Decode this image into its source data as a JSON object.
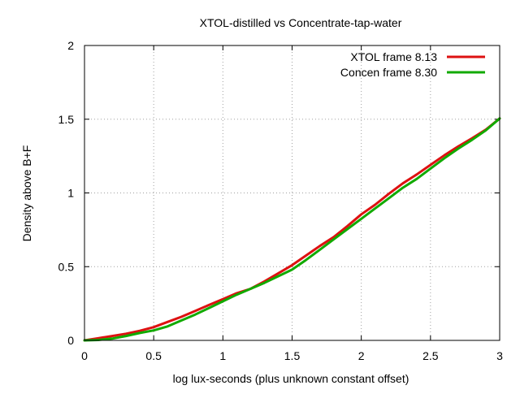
{
  "chart_data": {
    "type": "line",
    "title": "XTOL-distilled vs Concentrate-tap-water",
    "xlabel": "log lux-seconds (plus unknown constant offset)",
    "ylabel": "Density above B+F",
    "xlim": [
      0,
      3
    ],
    "ylim": [
      0,
      2
    ],
    "xticks": [
      "0",
      "0.5",
      "1",
      "1.5",
      "2",
      "2.5",
      "3"
    ],
    "yticks": [
      "0",
      "0.5",
      "1",
      "1.5",
      "2"
    ],
    "grid": true,
    "grid_style": "dotted",
    "legend_position": "top-right",
    "series": [
      {
        "name": "XTOL frame 8.13",
        "color": "#dd1111",
        "x": [
          0,
          0.1,
          0.2,
          0.3,
          0.4,
          0.5,
          0.6,
          0.7,
          0.8,
          0.9,
          1.0,
          1.1,
          1.2,
          1.3,
          1.4,
          1.5,
          1.6,
          1.7,
          1.8,
          1.9,
          2.0,
          2.1,
          2.2,
          2.3,
          2.4,
          2.5,
          2.6,
          2.7,
          2.8,
          2.9,
          3.0
        ],
        "y": [
          0,
          0.015,
          0.03,
          0.045,
          0.065,
          0.09,
          0.125,
          0.16,
          0.2,
          0.24,
          0.28,
          0.32,
          0.35,
          0.4,
          0.455,
          0.51,
          0.575,
          0.64,
          0.7,
          0.775,
          0.855,
          0.92,
          0.995,
          1.065,
          1.125,
          1.19,
          1.255,
          1.315,
          1.37,
          1.43,
          1.505
        ]
      },
      {
        "name": "Concen frame 8.30",
        "color": "#11aa00",
        "x": [
          0,
          0.1,
          0.2,
          0.3,
          0.4,
          0.5,
          0.6,
          0.7,
          0.8,
          0.9,
          1.0,
          1.1,
          1.2,
          1.3,
          1.4,
          1.5,
          1.6,
          1.7,
          1.8,
          1.9,
          2.0,
          2.1,
          2.2,
          2.3,
          2.4,
          2.5,
          2.6,
          2.7,
          2.8,
          2.9,
          3.0
        ],
        "y": [
          0,
          0.003,
          0.012,
          0.03,
          0.05,
          0.068,
          0.095,
          0.135,
          0.175,
          0.22,
          0.265,
          0.31,
          0.35,
          0.39,
          0.435,
          0.48,
          0.545,
          0.615,
          0.685,
          0.755,
          0.825,
          0.895,
          0.965,
          1.035,
          1.095,
          1.165,
          1.235,
          1.3,
          1.36,
          1.425,
          1.505
        ]
      }
    ]
  }
}
